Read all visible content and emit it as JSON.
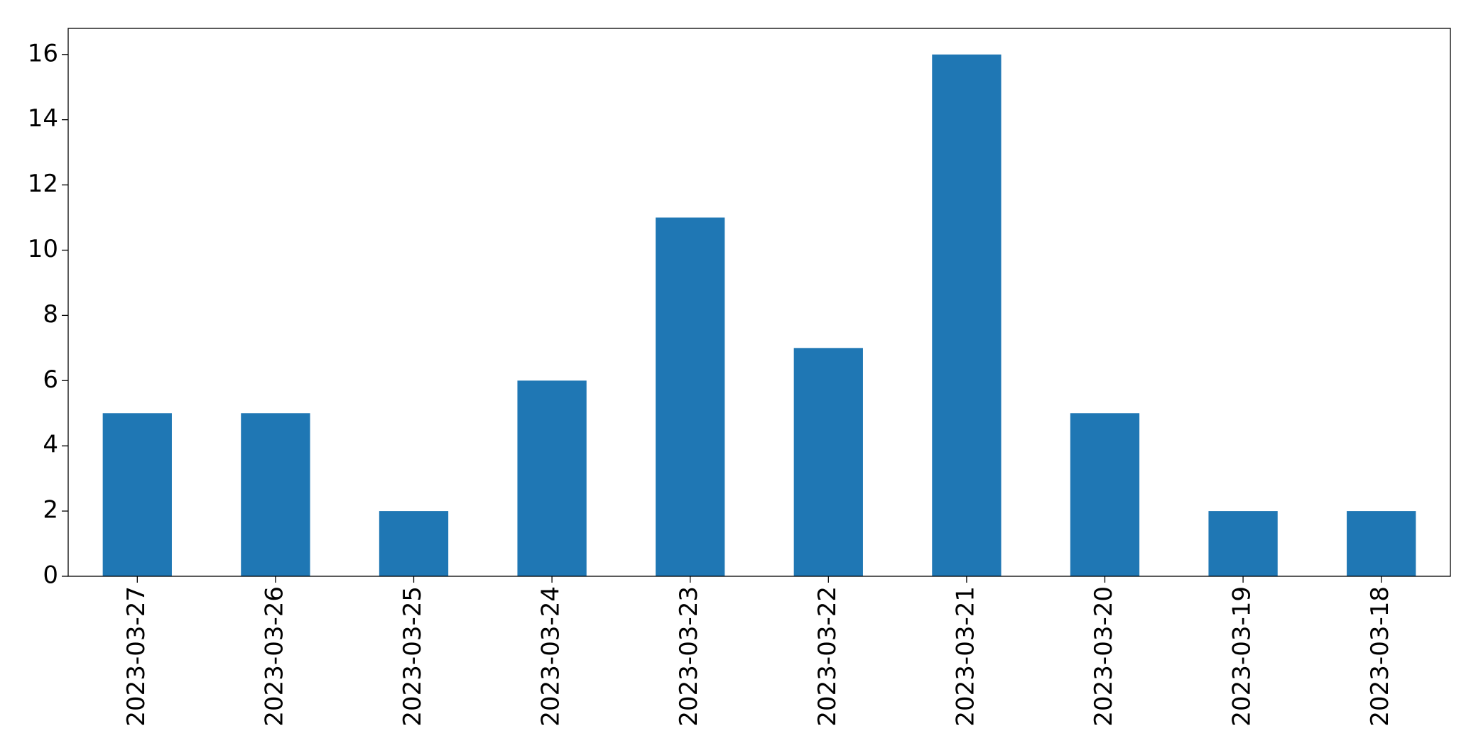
{
  "chart_data": {
    "type": "bar",
    "categories": [
      "2023-03-27",
      "2023-03-26",
      "2023-03-25",
      "2023-03-24",
      "2023-03-23",
      "2023-03-22",
      "2023-03-21",
      "2023-03-20",
      "2023-03-19",
      "2023-03-18"
    ],
    "values": [
      5,
      5,
      2,
      6,
      11,
      7,
      16,
      5,
      2,
      2
    ],
    "color": "#1f77b4",
    "ylim": [
      0,
      16.8
    ],
    "yticks": [
      0,
      2,
      4,
      6,
      8,
      10,
      12,
      14,
      16
    ],
    "grid": false
  }
}
